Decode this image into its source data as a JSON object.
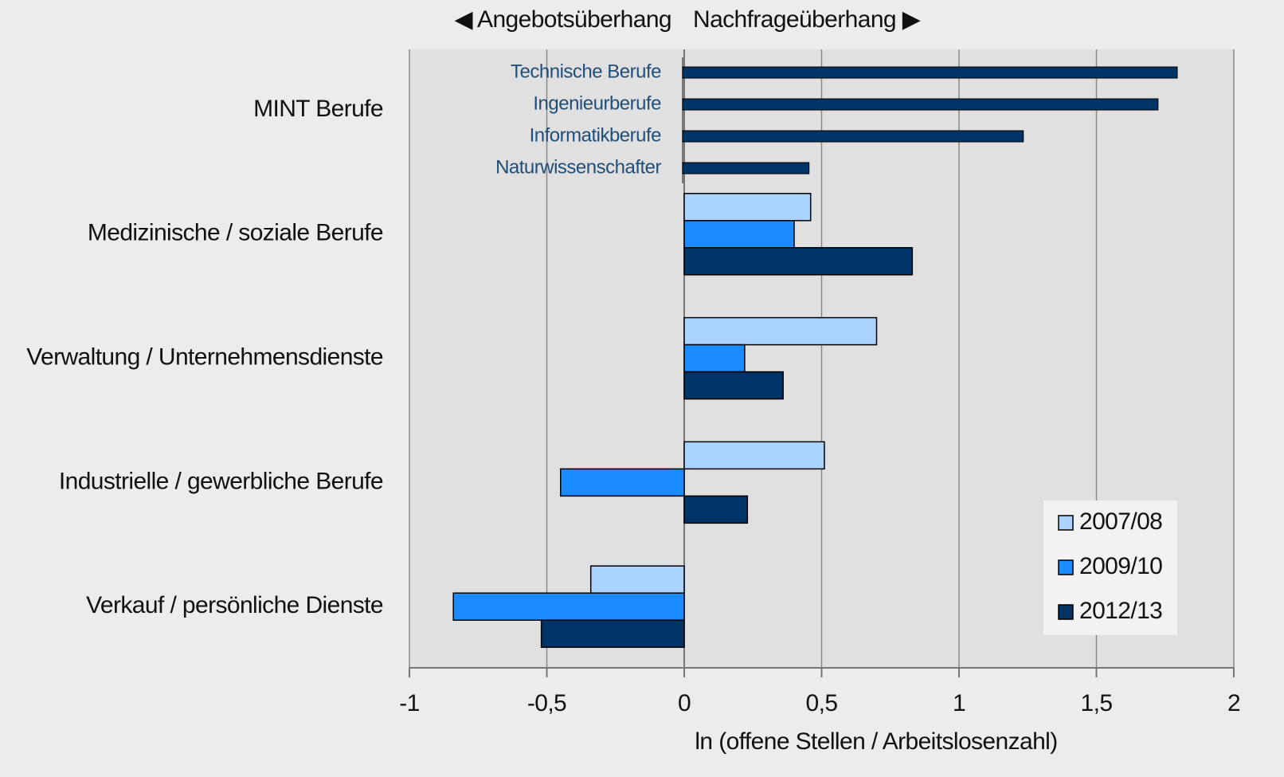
{
  "chart_data": {
    "type": "bar",
    "orientation": "horizontal",
    "header_left": "◀ Angebotsüberhang",
    "header_right": "Nachfrageüberhang ▶",
    "xlabel": "ln (offene Stellen / Arbeitslosenzahl)",
    "categories": [
      "MINT Berufe",
      "Medizinische / soziale Berufe",
      "Verwaltung / Unternehmensdienste",
      "Industrielle / gewerbliche Berufe",
      "Verkauf / persönliche Dienste"
    ],
    "series": [
      {
        "name": "2007/08",
        "color": "#aad4ff",
        "values": [
          null,
          0.46,
          0.7,
          0.51,
          -0.34
        ]
      },
      {
        "name": "2009/10",
        "color": "#1a8cff",
        "values": [
          null,
          0.4,
          0.22,
          -0.45,
          -0.84
        ]
      },
      {
        "name": "2012/13",
        "color": "#003366",
        "values": [
          null,
          0.83,
          0.36,
          0.23,
          -0.52
        ]
      }
    ],
    "mint_breakdown": {
      "labels": [
        "Technische Berufe",
        "Ingenieurberufe",
        "Informatikberufe",
        "Naturwissenschafter"
      ],
      "values": [
        1.8,
        1.73,
        1.24,
        0.46
      ],
      "color": "#003366",
      "label_color": "#1f4e79"
    },
    "xlim": [
      -1,
      2
    ],
    "xticks": [
      -1,
      {
        "value": -0.5,
        "label": "-0,5"
      },
      0,
      {
        "value": 0.5,
        "label": "0,5"
      },
      1,
      {
        "value": 1.5,
        "label": "1,5"
      },
      2
    ],
    "grid": true,
    "legend": "bottom-right"
  }
}
